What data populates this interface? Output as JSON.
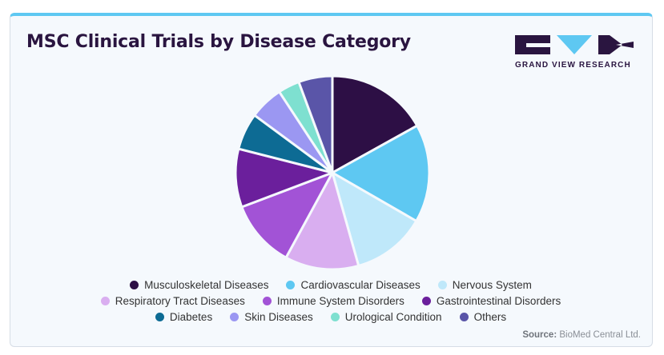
{
  "title": "MSC Clinical Trials by Disease Category",
  "logo": {
    "text": "GRAND VIEW RESEARCH",
    "color": "#2a1540",
    "accent": "#5ec8f2"
  },
  "source": {
    "label": "Source:",
    "text": "BioMed Central Ltd."
  },
  "chart_data": {
    "type": "pie",
    "title": "MSC Clinical Trials by Disease Category",
    "categories": [
      "Musculoskeletal Diseases",
      "Cardiovascular Diseases",
      "Nervous System",
      "Respiratory Tract Diseases",
      "Immune System Disorders",
      "Gastrointestinal Disorders",
      "Diabetes",
      "Skin Diseases",
      "Urological Condition",
      "Others"
    ],
    "values": [
      16.5,
      16.0,
      12.0,
      12.0,
      11.0,
      9.5,
      6.0,
      5.5,
      3.5,
      5.5
    ],
    "colors": [
      "#2d0f45",
      "#5ec8f2",
      "#bfe8fa",
      "#d9aef0",
      "#a253d6",
      "#6b1f9c",
      "#0d6b94",
      "#9b97f2",
      "#7ee0d0",
      "#5a55a8"
    ],
    "legend_position": "bottom",
    "start_angle_deg": 0,
    "direction": "clockwise"
  }
}
